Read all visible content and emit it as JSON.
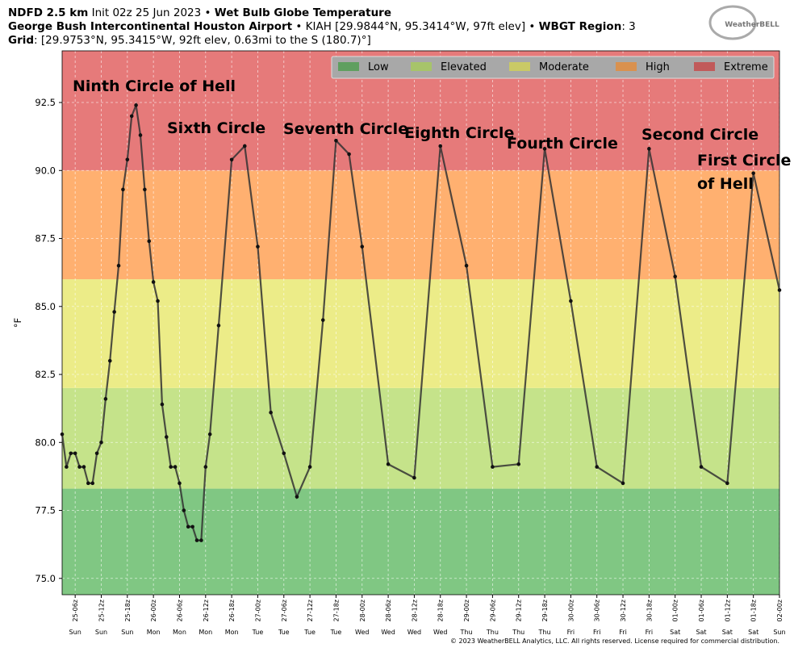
{
  "header": {
    "line1": [
      "NDFD 2.5 km",
      " Init 02z 25 Jun 2023 • ",
      "Wet Bulb Globe Temperature"
    ],
    "line2": [
      "George Bush Intercontinental Houston Airport",
      " • KIAH [29.9844°N, 95.3414°W, 97ft elev] • ",
      "WBGT Region",
      ": 3"
    ],
    "line3": [
      "Grid",
      ": [29.9753°N, 95.3415°W, 92ft elev, 0.63mi to the S (180.7)°]"
    ],
    "logo": "WeatherBELL",
    "footer": "© 2023 WeatherBELL Analytics, LLC. All rights reserved. License required for commercial distribution."
  },
  "chart_data": {
    "type": "line",
    "y_label": "°F",
    "grid": true,
    "legend": "top-right",
    "xlim": [
      3,
      168
    ],
    "ylim": [
      74.4,
      94.4
    ],
    "yticks": [
      {
        "value": 75,
        "label": "75.0"
      },
      {
        "value": 77.5,
        "label": "77.5"
      },
      {
        "value": 80,
        "label": "80.0"
      },
      {
        "value": 82.5,
        "label": "82.5"
      },
      {
        "value": 85,
        "label": "85.0"
      },
      {
        "value": 87.5,
        "label": "87.5"
      },
      {
        "value": 90,
        "label": "90.0"
      },
      {
        "value": 92.5,
        "label": "92.5"
      }
    ],
    "xticks": [
      {
        "value": 6,
        "label": "25-06z"
      },
      {
        "value": 12,
        "label": "25-12z"
      },
      {
        "value": 18,
        "label": "25-18z"
      },
      {
        "value": 24,
        "label": "26-00z"
      },
      {
        "value": 30,
        "label": "26-06z"
      },
      {
        "value": 36,
        "label": "26-12z"
      },
      {
        "value": 42,
        "label": "26-18z"
      },
      {
        "value": 48,
        "label": "27-00z"
      },
      {
        "value": 54,
        "label": "27-06z"
      },
      {
        "value": 60,
        "label": "27-12z"
      },
      {
        "value": 66,
        "label": "27-18z"
      },
      {
        "value": 72,
        "label": "28-00z"
      },
      {
        "value": 78,
        "label": "28-06z"
      },
      {
        "value": 84,
        "label": "28-12z"
      },
      {
        "value": 90,
        "label": "28-18z"
      },
      {
        "value": 96,
        "label": "29-00z"
      },
      {
        "value": 102,
        "label": "29-06z"
      },
      {
        "value": 108,
        "label": "29-12z"
      },
      {
        "value": 114,
        "label": "29-18z"
      },
      {
        "value": 120,
        "label": "30-00z"
      },
      {
        "value": 126,
        "label": "30-06z"
      },
      {
        "value": 132,
        "label": "30-12z"
      },
      {
        "value": 138,
        "label": "30-18z"
      },
      {
        "value": 144,
        "label": "01-00z"
      },
      {
        "value": 150,
        "label": "01-06z"
      },
      {
        "value": 156,
        "label": "01-12z"
      },
      {
        "value": 162,
        "label": "01-18z"
      },
      {
        "value": 168,
        "label": "02-00z"
      }
    ],
    "xtick_days": [
      "Sun",
      "Sun",
      "Sun",
      "Mon",
      "Mon",
      "Mon",
      "Mon",
      "Tue",
      "Tue",
      "Tue",
      "Tue",
      "Wed",
      "Wed",
      "Wed",
      "Wed",
      "Thu",
      "Thu",
      "Thu",
      "Thu",
      "Fri",
      "Fri",
      "Fri",
      "Fri",
      "Sat",
      "Sat",
      "Sat",
      "Sat",
      "Sun"
    ],
    "bands": [
      {
        "name": "Low",
        "color": "#80c783",
        "legend_color": "#5f9f5f",
        "range": [
          74.4,
          78.3
        ]
      },
      {
        "name": "Elevated",
        "color": "#c5e38a",
        "legend_color": "#a7c46a",
        "range": [
          78.3,
          82
        ]
      },
      {
        "name": "Moderate",
        "color": "#ecec88",
        "legend_color": "#c9c966",
        "range": [
          82,
          86
        ]
      },
      {
        "name": "High",
        "color": "#ffb070",
        "legend_color": "#d9914f",
        "range": [
          86,
          90
        ]
      },
      {
        "name": "Extreme",
        "color": "#e67a7a",
        "legend_color": "#c15a5a",
        "range": [
          90,
          94.4
        ]
      }
    ],
    "series": [
      {
        "color": "#333333",
        "x": [
          3,
          4,
          5,
          6,
          7,
          8,
          9,
          10,
          11,
          12,
          13,
          14,
          15,
          16,
          17,
          18,
          19,
          20,
          21,
          22,
          23,
          24,
          25,
          26,
          27,
          28,
          29,
          30,
          31,
          32,
          33,
          34,
          35,
          36,
          37,
          39,
          42,
          45,
          48,
          51,
          54,
          57,
          60,
          63,
          66,
          69,
          72,
          78,
          84,
          90,
          96,
          102,
          108,
          114,
          120,
          126,
          132,
          138,
          144,
          150,
          156,
          162,
          168
        ],
        "values": [
          80.3,
          79.1,
          79.6,
          79.6,
          79.1,
          79.1,
          78.5,
          78.5,
          79.6,
          80.0,
          81.6,
          83.0,
          84.8,
          86.5,
          89.3,
          90.4,
          92.0,
          92.4,
          91.3,
          89.3,
          87.4,
          85.9,
          85.2,
          81.4,
          80.2,
          79.1,
          79.1,
          78.5,
          77.5,
          76.9,
          76.9,
          76.4,
          76.4,
          79.1,
          80.3,
          84.3,
          90.4,
          90.9,
          87.2,
          81.1,
          79.6,
          78.0,
          79.1,
          84.5,
          91.1,
          90.6,
          87.2,
          79.2,
          78.7,
          90.9,
          86.5,
          79.1,
          79.2,
          90.8,
          85.2,
          79.1,
          78.5,
          90.8,
          86.1,
          79.1,
          78.5,
          89.9,
          85.6
        ]
      }
    ],
    "annotations": [
      [
        "Ninth Circle of Hell"
      ],
      [
        "Sixth Circle"
      ],
      [
        "Seventh Circle"
      ],
      [
        "Eighth Circle"
      ],
      [
        "Fourth Circle"
      ],
      [
        "Second Circle"
      ],
      [
        "First Circle",
        "of Hell"
      ]
    ]
  }
}
